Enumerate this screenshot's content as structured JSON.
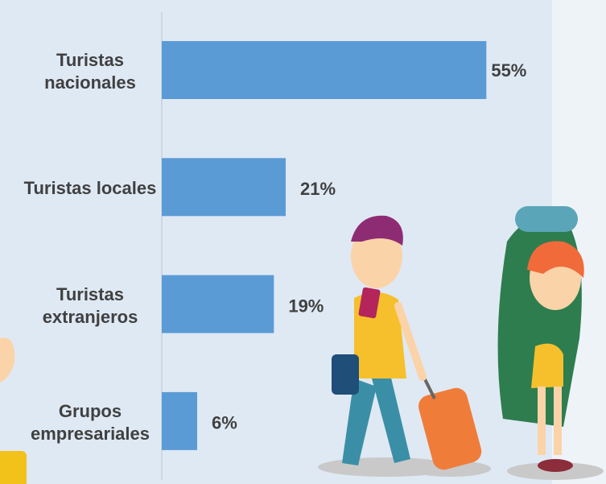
{
  "chart_data": {
    "type": "barh",
    "categories": [
      "Turistas nacionales",
      "Turistas locales",
      "Turistas extranjeros",
      "Grupos empresariales"
    ],
    "values": [
      55,
      21,
      19,
      6
    ],
    "value_labels": [
      "55%",
      "21%",
      "19%",
      "6%"
    ],
    "color": "#5b9bd5",
    "xlim": [
      0,
      75
    ]
  }
}
